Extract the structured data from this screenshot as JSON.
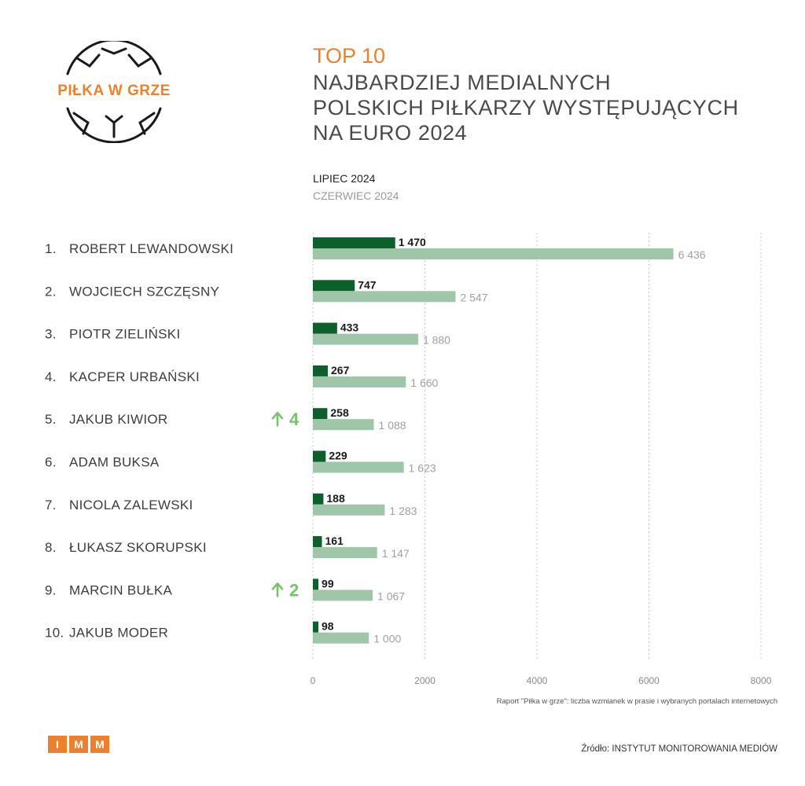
{
  "logo": {
    "text": "PIŁKA W GRZE"
  },
  "header": {
    "top_label": "TOP 10",
    "title_lines": [
      "NAJBARDZIEJ MEDIALNYCH",
      "POLSKICH PIŁKARZY WYSTĘPUJĄCYCH",
      "NA EURO 2024"
    ]
  },
  "legend": {
    "current": "LIPIEC 2024",
    "previous": "CZERWIEC 2024"
  },
  "colors": {
    "accent": "#ee7f2d",
    "current_bar": "#0d5f2c",
    "previous_bar": "#9fc6a8",
    "arrow": "#78c26e",
    "text": "#4a4a4a"
  },
  "chart_data": {
    "type": "bar",
    "orientation": "horizontal",
    "categories": [
      "ROBERT LEWANDOWSKI",
      "WOJCIECH SZCZĘSNY",
      "PIOTR ZIELIŃSKI",
      "KACPER URBAŃSKI",
      "JAKUB KIWIOR",
      "ADAM BUKSA",
      "NICOLA ZALEWSKI",
      "ŁUKASZ SKORUPSKI",
      "MARCIN BUŁKA",
      "JAKUB MODER"
    ],
    "ranks": [
      "1.",
      "2.",
      "3.",
      "4.",
      "5.",
      "6.",
      "7.",
      "8.",
      "9.",
      "10."
    ],
    "series": [
      {
        "name": "LIPIEC 2024",
        "values": [
          1470,
          747,
          433,
          267,
          258,
          229,
          188,
          161,
          99,
          98
        ],
        "labels": [
          "1 470",
          "747",
          "433",
          "267",
          "258",
          "229",
          "188",
          "161",
          "99",
          "98"
        ]
      },
      {
        "name": "CZERWIEC 2024",
        "values": [
          6436,
          2547,
          1880,
          1660,
          1088,
          1623,
          1283,
          1147,
          1067,
          1000
        ],
        "labels": [
          "6 436",
          "2 547",
          "1 880",
          "1 660",
          "1 088",
          "1 623",
          "1 283",
          "1 147",
          "1 067",
          "1 000"
        ]
      }
    ],
    "rank_changes": [
      null,
      null,
      null,
      null,
      "4",
      null,
      null,
      null,
      "2",
      null
    ],
    "xlim": [
      0,
      8000
    ],
    "xticks": [
      0,
      2000,
      4000,
      6000,
      8000
    ],
    "grid": true,
    "legend_position": "top"
  },
  "footer": {
    "note": "Raport \"Piłka w grze\": liczba wzmianek w prasie i wybranych portalach internetowych",
    "imm_letters": [
      "I",
      "M",
      "M"
    ],
    "source": "Źródło: INSTYTUT MONITOROWANIA MEDIÓW"
  }
}
